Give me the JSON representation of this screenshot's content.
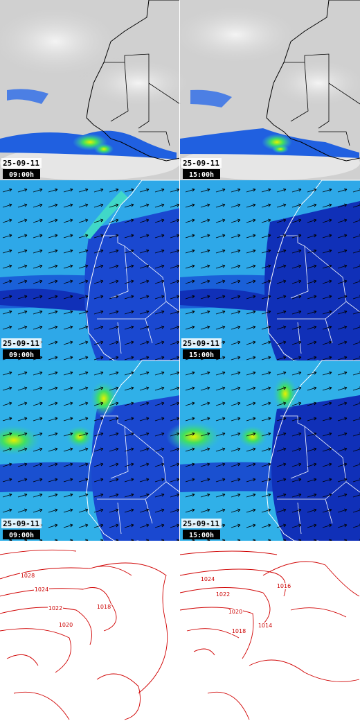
{
  "panels": [
    {
      "date": "25-09-11",
      "time": "09:00h"
    },
    {
      "date": "25-09-11",
      "time": "15:00h"
    },
    {
      "date": "25-09-11",
      "time": "09:00h"
    },
    {
      "date": "25-09-11",
      "time": "15:00h"
    },
    {
      "date": "25-09-11",
      "time": "09:00h"
    },
    {
      "date": "25-09-11",
      "time": "15:00h"
    }
  ],
  "isobars": {
    "left": [
      "1028",
      "1024",
      "1022",
      "1020",
      "1018"
    ],
    "right": [
      "1024",
      "1022",
      "1020",
      "1018",
      "1016",
      "1014"
    ]
  }
}
